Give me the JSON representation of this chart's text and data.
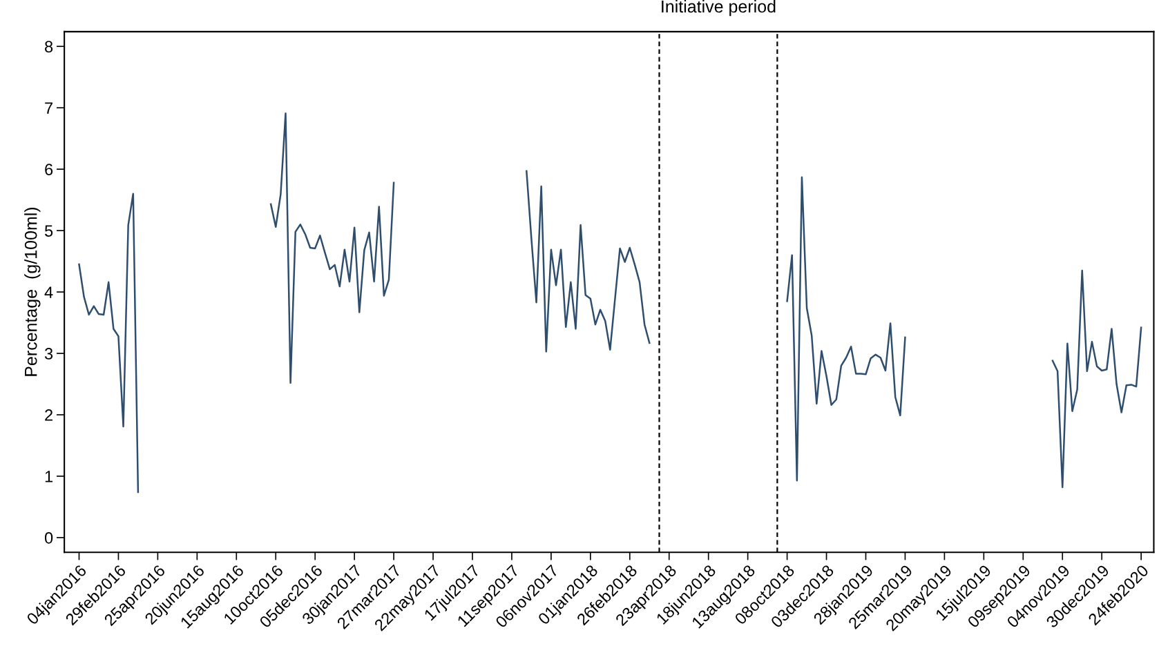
{
  "chart_data": {
    "type": "line",
    "ylabel": "Percentage  (g/100ml)",
    "xlim": [
      "2015-12-14",
      "2020-03-13"
    ],
    "ylim": [
      -0.24,
      8.24
    ],
    "yticks": [
      0,
      1,
      2,
      3,
      4,
      5,
      6,
      7,
      8
    ],
    "xticks": [
      {
        "value": "2016-01-04",
        "label": "04jan2016"
      },
      {
        "value": "2016-02-29",
        "label": "29feb2016"
      },
      {
        "value": "2016-04-25",
        "label": "25apr2016"
      },
      {
        "value": "2016-06-20",
        "label": "20jun2016"
      },
      {
        "value": "2016-08-15",
        "label": "15aug2016"
      },
      {
        "value": "2016-10-10",
        "label": "10oct2016"
      },
      {
        "value": "2016-12-05",
        "label": "05dec2016"
      },
      {
        "value": "2017-01-30",
        "label": "30jan2017"
      },
      {
        "value": "2017-03-27",
        "label": "27mar2017"
      },
      {
        "value": "2017-05-22",
        "label": "22may2017"
      },
      {
        "value": "2017-07-17",
        "label": "17jul2017"
      },
      {
        "value": "2017-09-11",
        "label": "11sep2017"
      },
      {
        "value": "2017-11-06",
        "label": "06nov2017"
      },
      {
        "value": "2018-01-01",
        "label": "01jan2018"
      },
      {
        "value": "2018-02-26",
        "label": "26feb2018"
      },
      {
        "value": "2018-04-23",
        "label": "23apr2018"
      },
      {
        "value": "2018-06-18",
        "label": "18jun2018"
      },
      {
        "value": "2018-08-13",
        "label": "13aug2018"
      },
      {
        "value": "2018-10-08",
        "label": "08oct2018"
      },
      {
        "value": "2018-12-03",
        "label": "03dec2018"
      },
      {
        "value": "2019-01-28",
        "label": "28jan2019"
      },
      {
        "value": "2019-03-25",
        "label": "25mar2019"
      },
      {
        "value": "2019-05-20",
        "label": "20may2019"
      },
      {
        "value": "2019-07-15",
        "label": "15jul2019"
      },
      {
        "value": "2019-09-09",
        "label": "09sep2019"
      },
      {
        "value": "2019-11-04",
        "label": "04nov2019"
      },
      {
        "value": "2019-12-30",
        "label": "30dec2019"
      },
      {
        "value": "2020-02-24",
        "label": "24feb2020"
      }
    ],
    "grid": false,
    "marker": "none",
    "line_style": "solid",
    "series": [
      {
        "color": "#2f4e6e",
        "x": [
          "2016-01-04",
          "2016-01-11",
          "2016-01-18",
          "2016-01-25",
          "2016-02-01",
          "2016-02-08",
          "2016-02-15",
          "2016-02-22",
          "2016-02-29",
          "2016-03-07",
          "2016-03-14",
          "2016-03-21",
          "2016-03-28"
        ],
        "values": [
          4.45,
          3.92,
          3.63,
          3.77,
          3.64,
          3.63,
          4.16,
          3.4,
          3.28,
          1.81,
          5.09,
          5.6,
          0.74
        ]
      },
      {
        "color": "#2f4e6e",
        "x": [
          "2016-10-03",
          "2016-10-10",
          "2016-10-17",
          "2016-10-24",
          "2016-10-31",
          "2016-11-07",
          "2016-11-14",
          "2016-11-21",
          "2016-11-28",
          "2016-12-05",
          "2016-12-12",
          "2016-12-19",
          "2016-12-26",
          "2017-01-02",
          "2017-01-09",
          "2017-01-16",
          "2017-01-23",
          "2017-01-30",
          "2017-02-06",
          "2017-02-13",
          "2017-02-20",
          "2017-02-27",
          "2017-03-06",
          "2017-03-13",
          "2017-03-20",
          "2017-03-27"
        ],
        "values": [
          5.43,
          5.06,
          5.59,
          6.91,
          2.52,
          4.98,
          5.1,
          4.94,
          4.72,
          4.71,
          4.92,
          4.64,
          4.37,
          4.44,
          4.09,
          4.69,
          4.17,
          5.05,
          3.67,
          4.68,
          4.97,
          4.17,
          5.39,
          3.94,
          4.2,
          5.78
        ]
      },
      {
        "color": "#2f4e6e",
        "x": [
          "2017-10-02",
          "2017-10-09",
          "2017-10-16",
          "2017-10-23",
          "2017-10-30",
          "2017-11-06",
          "2017-11-13",
          "2017-11-20",
          "2017-11-27",
          "2017-12-04",
          "2017-12-11",
          "2017-12-18",
          "2017-12-25",
          "2018-01-01",
          "2018-01-08",
          "2018-01-15",
          "2018-01-22",
          "2018-01-29",
          "2018-02-05",
          "2018-02-12",
          "2018-02-19",
          "2018-02-26",
          "2018-03-05",
          "2018-03-12",
          "2018-03-19",
          "2018-03-26"
        ],
        "values": [
          5.97,
          4.86,
          3.83,
          5.72,
          3.03,
          4.69,
          4.11,
          4.69,
          3.43,
          4.16,
          3.4,
          5.09,
          3.95,
          3.89,
          3.47,
          3.71,
          3.53,
          3.06,
          3.89,
          4.71,
          4.49,
          4.72,
          4.45,
          4.16,
          3.47,
          3.17
        ]
      },
      {
        "color": "#2f4e6e",
        "x": [
          "2018-10-08",
          "2018-10-15",
          "2018-10-22",
          "2018-10-29",
          "2018-11-05",
          "2018-11-12",
          "2018-11-19",
          "2018-11-26",
          "2018-12-03",
          "2018-12-10",
          "2018-12-17",
          "2018-12-24",
          "2018-12-31",
          "2019-01-07",
          "2019-01-14",
          "2019-01-21",
          "2019-01-28",
          "2019-02-04",
          "2019-02-11",
          "2019-02-18",
          "2019-02-25",
          "2019-03-04",
          "2019-03-11",
          "2019-03-18",
          "2019-03-25"
        ],
        "values": [
          3.85,
          4.6,
          0.93,
          5.87,
          3.74,
          3.29,
          2.18,
          3.04,
          2.63,
          2.16,
          2.25,
          2.8,
          2.93,
          3.11,
          2.67,
          2.67,
          2.66,
          2.92,
          2.98,
          2.93,
          2.72,
          3.49,
          2.29,
          1.99,
          3.26
        ]
      },
      {
        "color": "#2f4e6e",
        "x": [
          "2019-10-21",
          "2019-10-28",
          "2019-11-04",
          "2019-11-11",
          "2019-11-18",
          "2019-11-25",
          "2019-12-02",
          "2019-12-09",
          "2019-12-16",
          "2019-12-23",
          "2019-12-30",
          "2020-01-06",
          "2020-01-13",
          "2020-01-20",
          "2020-01-27",
          "2020-02-03",
          "2020-02-10",
          "2020-02-17",
          "2020-02-24"
        ],
        "values": [
          2.88,
          2.71,
          0.82,
          3.16,
          2.06,
          2.41,
          4.35,
          2.71,
          3.19,
          2.79,
          2.72,
          2.74,
          3.4,
          2.5,
          2.04,
          2.48,
          2.49,
          2.46,
          3.42
        ]
      }
    ],
    "ref_lines": [
      {
        "axis": "x",
        "value": "2018-04-09",
        "color": "#000000",
        "line_style": "dashed"
      },
      {
        "axis": "x",
        "value": "2018-09-24",
        "color": "#000000",
        "line_style": "dashed"
      }
    ],
    "annotations": [
      "Initiative period"
    ]
  }
}
